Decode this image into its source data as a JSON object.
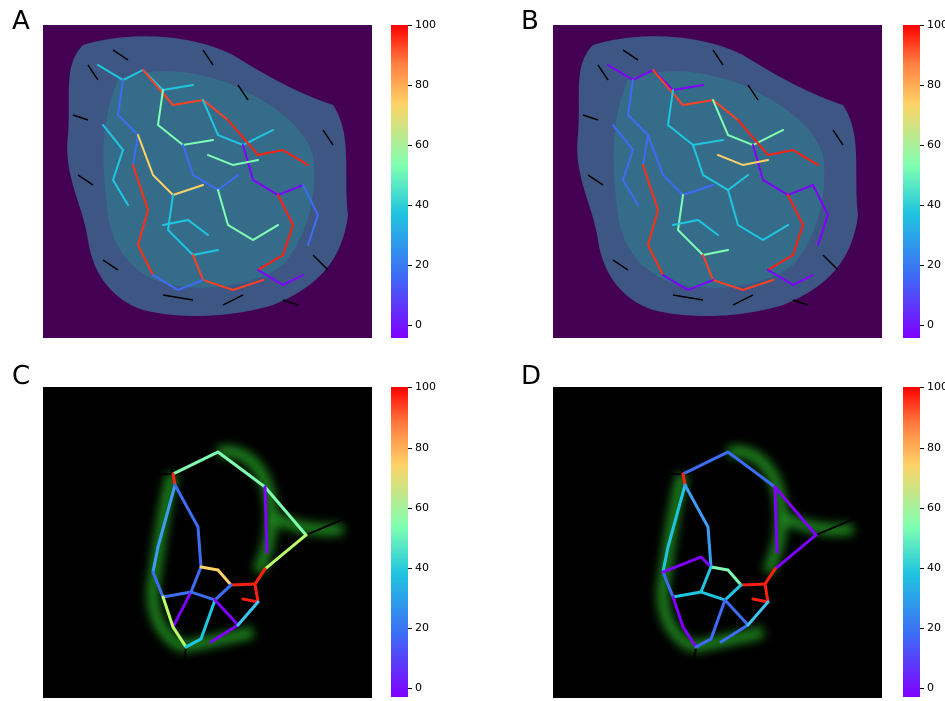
{
  "panels": [
    {
      "letter": "A",
      "kind": "cell"
    },
    {
      "letter": "B",
      "kind": "cell"
    },
    {
      "letter": "C",
      "kind": "network"
    },
    {
      "letter": "D",
      "kind": "network"
    }
  ],
  "colorbar": {
    "ticks": [
      "100",
      "80",
      "60",
      "40",
      "20",
      "0"
    ],
    "colors": [
      "#7f00ff",
      "#3d6cf5",
      "#1fc6e0",
      "#7fffb2",
      "#ffd266",
      "#ff7c40",
      "#ff0000"
    ]
  },
  "colors": {
    "cell_background": "#440154",
    "cell_body": "#3e5f8a",
    "fluorescence": "#2bb52b",
    "black_background": "#000000"
  }
}
